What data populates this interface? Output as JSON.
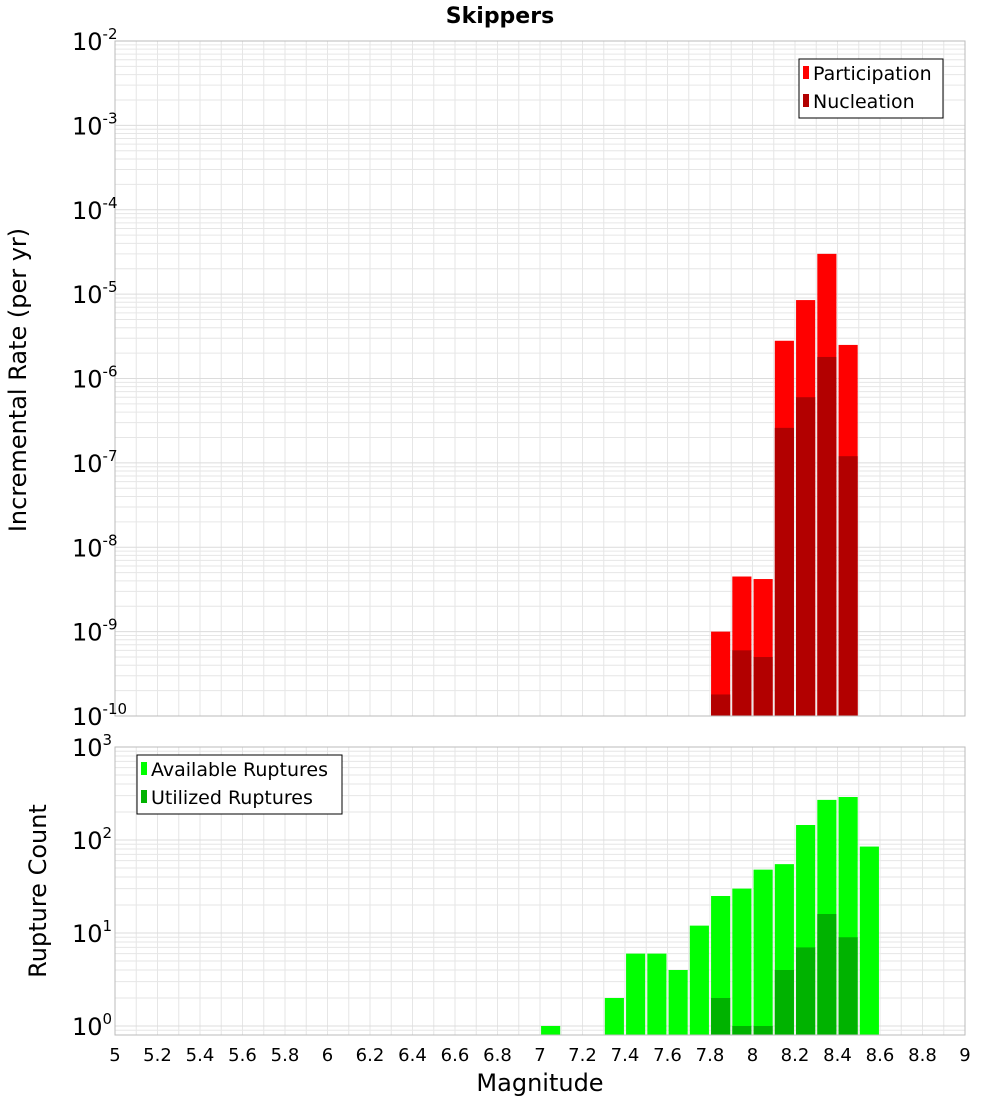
{
  "title": "Skippers",
  "xlabel": "Magnitude",
  "x_ticks": [
    "5",
    "5.2",
    "5.4",
    "5.6",
    "5.8",
    "6",
    "6.2",
    "6.4",
    "6.6",
    "6.8",
    "7",
    "7.2",
    "7.4",
    "7.6",
    "7.8",
    "8",
    "8.2",
    "8.4",
    "8.6",
    "8.8",
    "9"
  ],
  "colors": {
    "participation": "#ff0000",
    "nucleation": "#b20000",
    "available": "#00ff00",
    "utilized": "#00b200",
    "grid": "#e6e6e6",
    "frame": "#bbbbbb"
  },
  "chart_data": [
    {
      "type": "bar",
      "panel": "top",
      "ylabel": "Incremental Rate (per yr)",
      "yscale": "log",
      "ylim": [
        1e-10,
        0.01
      ],
      "xlim": [
        5,
        9
      ],
      "y_ticks": [
        {
          "value": 1e-10,
          "base": "10",
          "exp": "-10"
        },
        {
          "value": 1e-09,
          "base": "10",
          "exp": "-9"
        },
        {
          "value": 1e-08,
          "base": "10",
          "exp": "-8"
        },
        {
          "value": 1e-07,
          "base": "10",
          "exp": "-7"
        },
        {
          "value": 1e-06,
          "base": "10",
          "exp": "-6"
        },
        {
          "value": 1e-05,
          "base": "10",
          "exp": "-5"
        },
        {
          "value": 0.0001,
          "base": "10",
          "exp": "-4"
        },
        {
          "value": 0.001,
          "base": "10",
          "exp": "-3"
        },
        {
          "value": 0.01,
          "base": "10",
          "exp": "-2"
        }
      ],
      "legend_position": "top-right",
      "series": [
        {
          "name": "Participation",
          "x": [
            7.85,
            7.95,
            8.05,
            8.15,
            8.25,
            8.35,
            8.45
          ],
          "values": [
            1e-09,
            4.5e-09,
            4.2e-09,
            2.8e-06,
            8.5e-06,
            3e-05,
            2.5e-06
          ]
        },
        {
          "name": "Nucleation",
          "x": [
            7.85,
            7.95,
            8.05,
            8.15,
            8.25,
            8.35,
            8.45
          ],
          "values": [
            1.8e-10,
            6e-10,
            5e-10,
            2.6e-07,
            6e-07,
            1.8e-06,
            1.2e-07
          ]
        }
      ]
    },
    {
      "type": "bar",
      "panel": "bottom",
      "ylabel": "Rupture Count",
      "yscale": "log",
      "ylim": [
        0.8,
        1000
      ],
      "xlim": [
        5,
        9
      ],
      "y_ticks": [
        {
          "value": 1,
          "base": "10",
          "exp": "0"
        },
        {
          "value": 10,
          "base": "10",
          "exp": "1"
        },
        {
          "value": 100,
          "base": "10",
          "exp": "2"
        },
        {
          "value": 1000,
          "base": "10",
          "exp": "3"
        }
      ],
      "legend_position": "top-left",
      "series": [
        {
          "name": "Available Ruptures",
          "x": [
            7.05,
            7.35,
            7.45,
            7.55,
            7.65,
            7.75,
            7.85,
            7.95,
            8.05,
            8.15,
            8.25,
            8.35,
            8.45,
            8.55
          ],
          "values": [
            1,
            2,
            6,
            6,
            4,
            12,
            25,
            30,
            48,
            55,
            145,
            270,
            290,
            85
          ]
        },
        {
          "name": "Utilized Ruptures",
          "x": [
            7.85,
            7.95,
            8.05,
            8.15,
            8.25,
            8.35,
            8.45
          ],
          "values": [
            2,
            1,
            1,
            4,
            7,
            16,
            9
          ]
        }
      ]
    }
  ]
}
